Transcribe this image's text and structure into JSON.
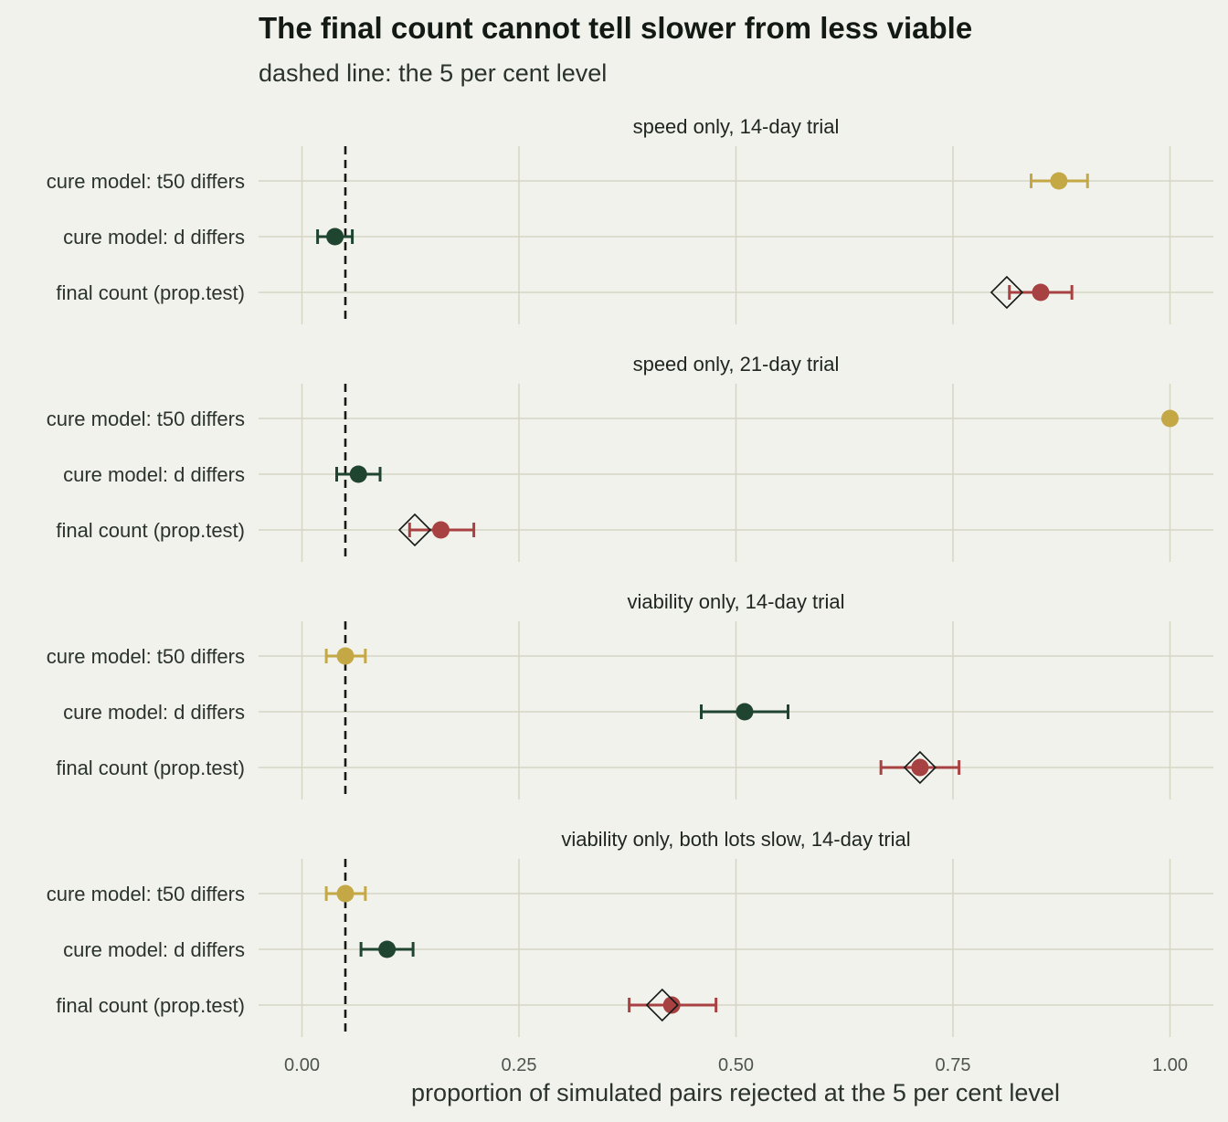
{
  "chart_data": {
    "type": "scatter",
    "title": "The final count cannot tell slower from less viable",
    "subtitle": "dashed line: the 5 per cent level",
    "xlabel": "proportion of simulated pairs rejected at the 5 per cent level",
    "xlim": [
      -0.05,
      1.05
    ],
    "x_ticks": [
      {
        "value": 0,
        "label": "0.00"
      },
      {
        "value": 0.25,
        "label": "0.25"
      },
      {
        "value": 0.5,
        "label": "0.50"
      },
      {
        "value": 0.75,
        "label": "0.75"
      },
      {
        "value": 1,
        "label": "1.00"
      }
    ],
    "reference_line": 0.05,
    "grid": true,
    "legend": "none",
    "categories": [
      "cure model: t50 differs",
      "cure model: d differs",
      "final count (prop.test)"
    ],
    "category_colors": [
      "#c4a846",
      "#1f4430",
      "#a84242"
    ],
    "panels": [
      {
        "title": "speed only, 14-day trial",
        "points": [
          {
            "value": 0.872,
            "lo": 0.84,
            "hi": 0.905
          },
          {
            "value": 0.038,
            "lo": 0.018,
            "hi": 0.058
          },
          {
            "value": 0.851,
            "lo": 0.815,
            "hi": 0.887,
            "diamond": 0.812
          }
        ]
      },
      {
        "title": "speed only, 21-day trial",
        "points": [
          {
            "value": 1.0,
            "lo": 1.0,
            "hi": 1.0
          },
          {
            "value": 0.065,
            "lo": 0.04,
            "hi": 0.09
          },
          {
            "value": 0.16,
            "lo": 0.124,
            "hi": 0.198,
            "diamond": 0.13
          }
        ]
      },
      {
        "title": "viability only, 14-day trial",
        "points": [
          {
            "value": 0.05,
            "lo": 0.028,
            "hi": 0.073
          },
          {
            "value": 0.51,
            "lo": 0.46,
            "hi": 0.56
          },
          {
            "value": 0.712,
            "lo": 0.667,
            "hi": 0.757,
            "diamond": 0.712
          }
        ]
      },
      {
        "title": "viability only, both lots slow, 14-day trial",
        "points": [
          {
            "value": 0.05,
            "lo": 0.028,
            "hi": 0.073
          },
          {
            "value": 0.098,
            "lo": 0.068,
            "hi": 0.128
          },
          {
            "value": 0.426,
            "lo": 0.377,
            "hi": 0.477,
            "diamond": 0.415
          }
        ]
      }
    ]
  }
}
